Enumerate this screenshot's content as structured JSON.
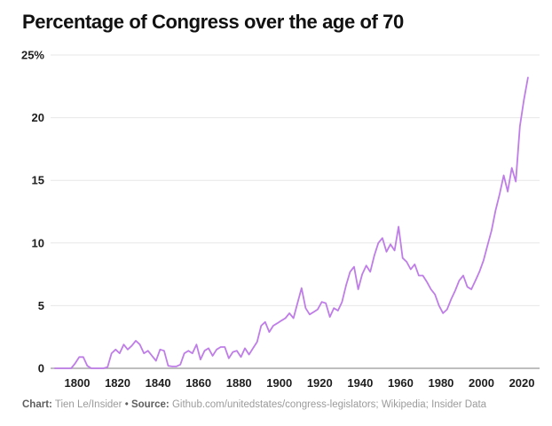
{
  "title": "Percentage of Congress over the age of 70",
  "footer": {
    "chart_label": "Chart:",
    "chart_credit": " Tien Le/Insider ",
    "bullet": "• ",
    "source_label": "Source:",
    "source_credit": " Github.com/unitedstates/congress-legislators; Wikipedia; Insider Data"
  },
  "colors": {
    "line": "#bf7de8",
    "grid": "#e7e7e7",
    "baseline": "#a8a8a8",
    "title_text": "#111111",
    "tick_text": "#1d1d1d",
    "footer_label": "#5f5f5f",
    "footer_text": "#9b9b9b",
    "background": "#ffffff"
  },
  "chart_data": {
    "type": "line",
    "title": "Percentage of Congress over the age of 70",
    "xlabel": "",
    "ylabel": "",
    "xlim": [
      1787,
      2029
    ],
    "ylim": [
      0,
      25
    ],
    "grid": "horizontal-only",
    "legend": "none",
    "x_ticks": [
      1800,
      1820,
      1840,
      1860,
      1880,
      1900,
      1920,
      1940,
      1960,
      1980,
      2000,
      2020
    ],
    "y_ticks": [
      {
        "value": 0,
        "label": "0"
      },
      {
        "value": 5,
        "label": "5"
      },
      {
        "value": 10,
        "label": "10"
      },
      {
        "value": 15,
        "label": "15"
      },
      {
        "value": 20,
        "label": "20"
      },
      {
        "value": 25,
        "label": "25%"
      }
    ],
    "series": [
      {
        "name": "Percentage of Congress over the age of 70",
        "x": [
          1789,
          1791,
          1793,
          1795,
          1797,
          1799,
          1801,
          1803,
          1805,
          1807,
          1809,
          1811,
          1813,
          1815,
          1817,
          1819,
          1821,
          1823,
          1825,
          1827,
          1829,
          1831,
          1833,
          1835,
          1837,
          1839,
          1841,
          1843,
          1845,
          1847,
          1849,
          1851,
          1853,
          1855,
          1857,
          1859,
          1861,
          1863,
          1865,
          1867,
          1869,
          1871,
          1873,
          1875,
          1877,
          1879,
          1881,
          1883,
          1885,
          1887,
          1889,
          1891,
          1893,
          1895,
          1897,
          1899,
          1901,
          1903,
          1905,
          1907,
          1909,
          1911,
          1913,
          1915,
          1917,
          1919,
          1921,
          1923,
          1925,
          1927,
          1929,
          1931,
          1933,
          1935,
          1937,
          1939,
          1941,
          1943,
          1945,
          1947,
          1949,
          1951,
          1953,
          1955,
          1957,
          1959,
          1961,
          1963,
          1965,
          1967,
          1969,
          1971,
          1973,
          1975,
          1977,
          1979,
          1981,
          1983,
          1985,
          1987,
          1989,
          1991,
          1993,
          1995,
          1997,
          1999,
          2001,
          2003,
          2005,
          2007,
          2009,
          2011,
          2013,
          2015,
          2017,
          2019,
          2021,
          2023
        ],
        "values": [
          0,
          0,
          0,
          0,
          0,
          0.4,
          0.9,
          0.9,
          0.2,
          0,
          0,
          0,
          0,
          0.1,
          1.2,
          1.5,
          1.2,
          1.9,
          1.5,
          1.8,
          2.2,
          1.9,
          1.2,
          1.4,
          1.0,
          0.6,
          1.5,
          1.4,
          0.2,
          0.15,
          0.15,
          0.3,
          1.2,
          1.4,
          1.2,
          1.9,
          0.7,
          1.4,
          1.6,
          1.0,
          1.5,
          1.7,
          1.7,
          0.8,
          1.3,
          1.4,
          0.9,
          1.6,
          1.1,
          1.6,
          2.1,
          3.4,
          3.7,
          2.9,
          3.4,
          3.6,
          3.8,
          4.0,
          4.4,
          4.0,
          5.2,
          6.4,
          4.8,
          4.3,
          4.5,
          4.7,
          5.3,
          5.2,
          4.1,
          4.8,
          4.6,
          5.3,
          6.6,
          7.7,
          8.1,
          6.3,
          7.5,
          8.2,
          7.7,
          9.0,
          10.0,
          10.4,
          9.3,
          9.9,
          9.4,
          11.3,
          8.8,
          8.5,
          7.9,
          8.3,
          7.4,
          7.4,
          6.9,
          6.3,
          5.9,
          5.0,
          4.4,
          4.7,
          5.5,
          6.2,
          7.0,
          7.4,
          6.5,
          6.3,
          7.0,
          7.7,
          8.6,
          9.8,
          11.0,
          12.6,
          13.9,
          15.4,
          14.1,
          16.0,
          14.9,
          19.3,
          21.4,
          23.2
        ]
      }
    ]
  }
}
